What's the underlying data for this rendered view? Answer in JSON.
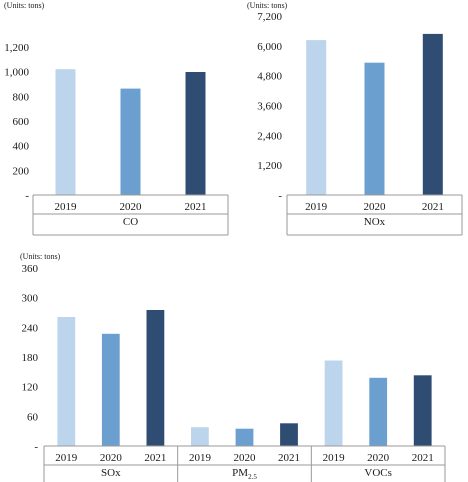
{
  "colors": {
    "y2019": "#bcd5ec",
    "y2020": "#6a9fd0",
    "y2021": "#2f4d73"
  },
  "chart_data": [
    {
      "type": "bar",
      "unit_label": "(Units: tons)",
      "categories": [
        "2019",
        "2020",
        "2021"
      ],
      "groups": [
        {
          "name": "CO",
          "values": [
            1020,
            863,
            997
          ]
        }
      ],
      "ylim": [
        0,
        1200
      ],
      "yticks": [
        0,
        200,
        400,
        600,
        800,
        1000,
        1200
      ],
      "ytick_labels": [
        "-",
        "200",
        "400",
        "600",
        "800",
        "1,000",
        "1,200"
      ]
    },
    {
      "type": "bar",
      "unit_label": "(Units: tons)",
      "categories": [
        "2019",
        "2020",
        "2021"
      ],
      "groups": [
        {
          "name": "NOx",
          "values": [
            6230,
            5320,
            6480
          ]
        }
      ],
      "ylim": [
        0,
        7200
      ],
      "yticks": [
        0,
        1200,
        2400,
        3600,
        4800,
        6000,
        7200
      ],
      "ytick_labels": [
        "-",
        "1,200",
        "2,400",
        "3,600",
        "4,800",
        "6,000",
        "7,200"
      ]
    },
    {
      "type": "bar",
      "unit_label": "(Units: tons)",
      "categories": [
        "2019",
        "2020",
        "2021"
      ],
      "groups": [
        {
          "name": "SOx",
          "values": [
            261,
            227,
            275
          ]
        },
        {
          "name": "PM",
          "name_sub": "2.5",
          "values": [
            38,
            35,
            46
          ]
        },
        {
          "name": "VOCs",
          "values": [
            173,
            138,
            143
          ]
        }
      ],
      "ylim": [
        0,
        360
      ],
      "yticks": [
        0,
        60,
        120,
        180,
        240,
        300,
        360
      ],
      "ytick_labels": [
        "-",
        "60",
        "120",
        "180",
        "240",
        "300",
        "360"
      ]
    }
  ]
}
